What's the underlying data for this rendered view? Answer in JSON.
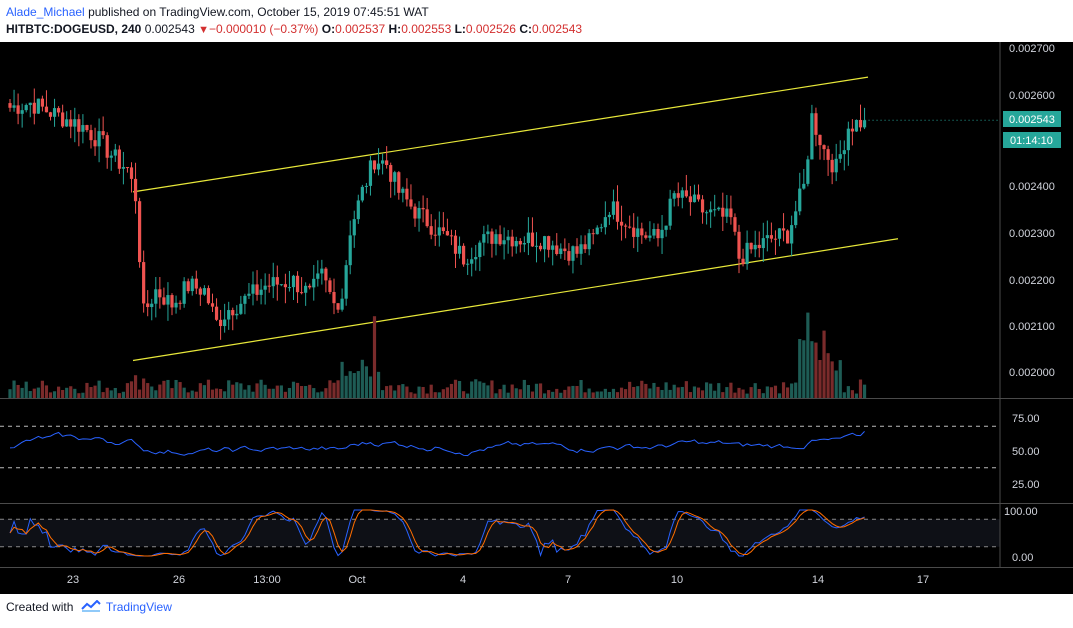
{
  "header": {
    "user": "Alade_Michael",
    "published": "published on TradingView.com, October 15, 2019 07:45:51 WAT",
    "symbol": "HITBTC:DOGEUSD, 240",
    "last": "0.002543",
    "change": "−0.000010 (−0.37%)",
    "o_label": "O:",
    "o_value": "0.002537",
    "h_label": "H:",
    "h_value": "0.002553",
    "l_label": "L:",
    "l_value": "0.002526",
    "c_label": "C:",
    "c_value": "0.002543"
  },
  "price_axis": {
    "ticks": [
      "0.002700",
      "0.002600",
      "0.002400",
      "0.002300",
      "0.002200",
      "0.002100",
      "0.002000"
    ],
    "last_price_label": "0.002543",
    "countdown_label": "01:14:10"
  },
  "rsi_axis": {
    "ticks": [
      "75.00",
      "50.00",
      "25.00"
    ]
  },
  "stoch_axis": {
    "ticks": [
      "100.00",
      "0.00"
    ]
  },
  "time_axis": {
    "ticks": [
      "23",
      "26",
      "13:00",
      "Oct",
      "4",
      "7",
      "10",
      "14",
      "17"
    ]
  },
  "footer": {
    "created": "Created with",
    "brand": "TradingView"
  },
  "colors": {
    "up": "#26a69a",
    "down": "#ef5350",
    "channel": "#e8e83a",
    "rsi": "#2962ff",
    "stoch_k": "#2962ff",
    "stoch_d": "#ff6d00",
    "volume_up": "#1e5c55",
    "volume_down": "#7a2b2b",
    "badge": "#26a69a"
  },
  "chart_data": {
    "type": "candlestick",
    "title": "HITBTC:DOGEUSD, 240",
    "ylim": [
      0.00195,
      0.00271
    ],
    "price_anchors": [
      [
        0,
        0.00257
      ],
      [
        5,
        0.00258
      ],
      [
        10,
        0.00256
      ],
      [
        18,
        0.00253
      ],
      [
        22,
        0.0025
      ],
      [
        26,
        0.00246
      ],
      [
        29,
        0.00244
      ],
      [
        31,
        0.00238
      ],
      [
        33,
        0.00213
      ],
      [
        36,
        0.00218
      ],
      [
        40,
        0.00215
      ],
      [
        44,
        0.00219
      ],
      [
        48,
        0.00218
      ],
      [
        51,
        0.00211
      ],
      [
        54,
        0.00214
      ],
      [
        58,
        0.00216
      ],
      [
        63,
        0.00219
      ],
      [
        70,
        0.0022
      ],
      [
        74,
        0.00217
      ],
      [
        77,
        0.00221
      ],
      [
        80,
        0.00215
      ],
      [
        82,
        0.00217
      ],
      [
        84,
        0.00231
      ],
      [
        87,
        0.00239
      ],
      [
        90,
        0.00246
      ],
      [
        93,
        0.00245
      ],
      [
        96,
        0.00239
      ],
      [
        100,
        0.00235
      ],
      [
        104,
        0.00232
      ],
      [
        108,
        0.00229
      ],
      [
        112,
        0.00225
      ],
      [
        116,
        0.00228
      ],
      [
        120,
        0.0023
      ],
      [
        126,
        0.00229
      ],
      [
        132,
        0.00229
      ],
      [
        136,
        0.00227
      ],
      [
        140,
        0.00226
      ],
      [
        144,
        0.00229
      ],
      [
        148,
        0.00236
      ],
      [
        152,
        0.00233
      ],
      [
        156,
        0.0023
      ],
      [
        160,
        0.00229
      ],
      [
        164,
        0.00238
      ],
      [
        168,
        0.00237
      ],
      [
        171,
        0.00235
      ],
      [
        174,
        0.00234
      ],
      [
        178,
        0.00233
      ],
      [
        180,
        0.00225
      ],
      [
        184,
        0.00227
      ],
      [
        188,
        0.00229
      ],
      [
        192,
        0.0023
      ],
      [
        196,
        0.0024
      ],
      [
        198,
        0.00255
      ],
      [
        201,
        0.00248
      ],
      [
        204,
        0.00244
      ],
      [
        207,
        0.00253
      ],
      [
        211,
        0.002543
      ]
    ],
    "channel": {
      "upper": {
        "from": [
          0.0,
          0.00239
        ],
        "to": [
          1.0,
          0.002635
        ]
      },
      "lower": {
        "from": [
          0.0,
          0.00203
        ],
        "to": [
          1.0,
          0.00229
        ]
      }
    },
    "rsi": {
      "upper_band": 70,
      "lower_band": 30,
      "last": 65
    },
    "stochastic": {
      "upper_band": 80,
      "lower_band": 20
    }
  }
}
